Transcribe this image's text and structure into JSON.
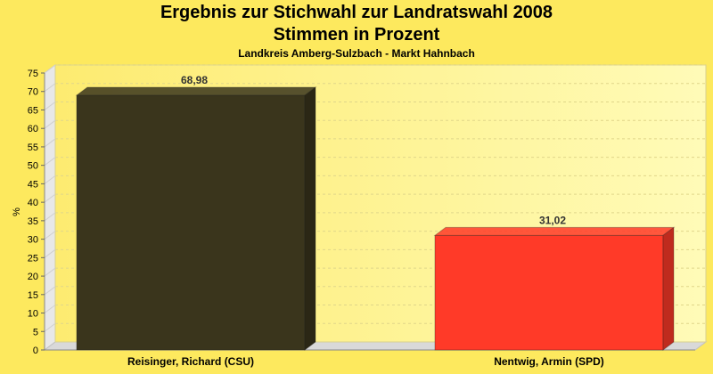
{
  "chart_data": {
    "type": "bar",
    "title": "Ergebnis zur Stichwahl zur Landratswahl 2008",
    "title_line2": "Stimmen in Prozent",
    "subtitle": "Landkreis Amberg-Sulzbach - Markt Hahnbach",
    "ylabel": "%",
    "xlabel": "",
    "ylim": [
      0,
      75
    ],
    "yticks": [
      0,
      5,
      10,
      15,
      20,
      25,
      30,
      35,
      40,
      45,
      50,
      55,
      60,
      65,
      70,
      75
    ],
    "grid": true,
    "categories": [
      "Reisinger, Richard (CSU)",
      "Nentwig, Armin (SPD)"
    ],
    "values": [
      68.98,
      31.02
    ],
    "value_labels": [
      "68,98",
      "31,02"
    ],
    "colors": [
      "#3a351c",
      "#ff3a28"
    ]
  }
}
